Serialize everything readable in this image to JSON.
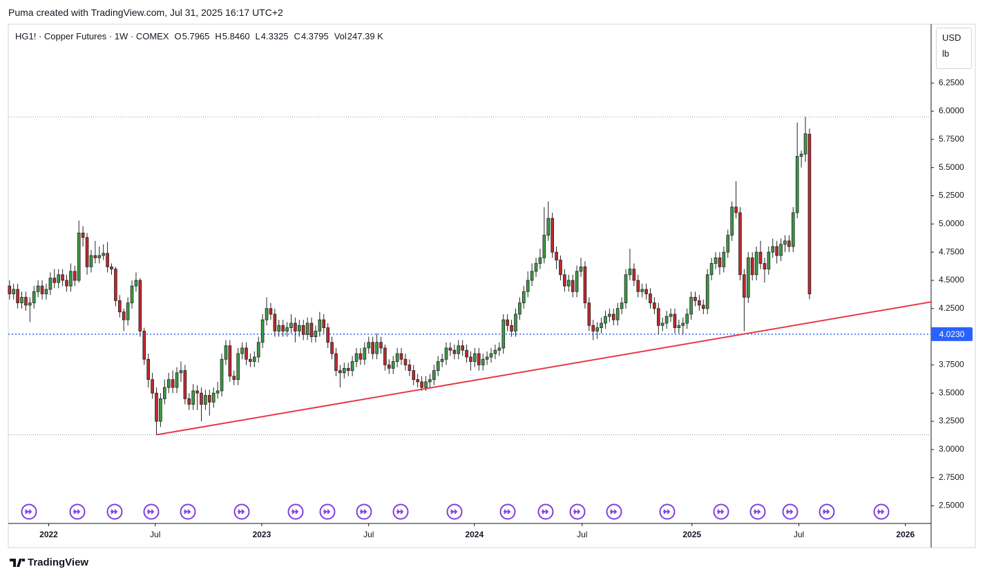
{
  "header": {
    "caption": "Puma created with TradingView.com, Jul 31, 2025 16:17 UTC+2"
  },
  "chart_data": {
    "type": "candlestick",
    "title": "HG1! · Copper Futures · 1W · COMEX",
    "legend_values": [
      {
        "label": "O",
        "text": "5.7965"
      },
      {
        "label": "H",
        "text": "5.8460"
      },
      {
        "label": "L",
        "text": "4.3325"
      },
      {
        "label": "C",
        "text": "4.3795"
      },
      {
        "label": "Vol",
        "text": "247.39 K"
      }
    ],
    "currency": "USD",
    "unit": "lb",
    "up_color": "#3d9a46",
    "down_color": "#c0282e",
    "xlim": [
      -0.3,
      225.8
    ],
    "ylim": [
      2.344,
      6.772
    ],
    "yticks": [
      {
        "value": 2.5,
        "label": "2.5000"
      },
      {
        "value": 2.75,
        "label": "2.7500"
      },
      {
        "value": 3,
        "label": "3.0000"
      },
      {
        "value": 3.25,
        "label": "3.2500"
      },
      {
        "value": 3.5,
        "label": "3.5000"
      },
      {
        "value": 3.75,
        "label": "3.7500"
      },
      {
        "value": 4,
        "label": "4.0000"
      },
      {
        "value": 4.25,
        "label": "4.2500"
      },
      {
        "value": 4.5,
        "label": "4.5000"
      },
      {
        "value": 4.75,
        "label": "4.7500"
      },
      {
        "value": 5,
        "label": "5.0000"
      },
      {
        "value": 5.25,
        "label": "5.2500"
      },
      {
        "value": 5.5,
        "label": "5.5000"
      },
      {
        "value": 5.75,
        "label": "5.7500"
      },
      {
        "value": 6,
        "label": "6.0000"
      },
      {
        "value": 6.25,
        "label": "6.2500"
      }
    ],
    "xticks": [
      {
        "value": 9.6,
        "label": "2022"
      },
      {
        "value": 35.7,
        "label": "Jul"
      },
      {
        "value": 61.8,
        "label": "2023"
      },
      {
        "value": 88,
        "label": "Jul"
      },
      {
        "value": 113.9,
        "label": "2024"
      },
      {
        "value": 140.3,
        "label": "Jul"
      },
      {
        "value": 167.2,
        "label": "2025"
      },
      {
        "value": 193.4,
        "label": "Jul"
      },
      {
        "value": 219.5,
        "label": "2026"
      }
    ],
    "range_lines": [
      5.95,
      3.13
    ],
    "hline": {
      "value": 4.023,
      "label": "4.0230",
      "color": "#2962ff"
    },
    "trendline": {
      "color": "#e53945",
      "start": [
        36,
        3.13
      ],
      "end": [
        226,
        4.31
      ]
    },
    "candles": [
      [
        4.45,
        4.5,
        4.33,
        4.38
      ],
      [
        4.38,
        4.47,
        4.33,
        4.42
      ],
      [
        4.42,
        4.47,
        4.25,
        4.3
      ],
      [
        4.3,
        4.4,
        4.25,
        4.35
      ],
      [
        4.35,
        4.4,
        4.23,
        4.28
      ],
      [
        4.28,
        4.35,
        4.13,
        4.3
      ],
      [
        4.3,
        4.45,
        4.25,
        4.4
      ],
      [
        4.4,
        4.5,
        4.35,
        4.45
      ],
      [
        4.45,
        4.5,
        4.33,
        4.38
      ],
      [
        4.38,
        4.47,
        4.33,
        4.42
      ],
      [
        4.42,
        4.57,
        4.37,
        4.52
      ],
      [
        4.52,
        4.6,
        4.43,
        4.48
      ],
      [
        4.48,
        4.6,
        4.43,
        4.55
      ],
      [
        4.55,
        4.6,
        4.45,
        4.5
      ],
      [
        4.5,
        4.55,
        4.4,
        4.45
      ],
      [
        4.45,
        4.65,
        4.4,
        4.58
      ],
      [
        4.58,
        4.63,
        4.45,
        4.5
      ],
      [
        4.5,
        5.03,
        4.48,
        4.92
      ],
      [
        4.92,
        4.98,
        4.8,
        4.88
      ],
      [
        4.88,
        4.92,
        4.55,
        4.62
      ],
      [
        4.62,
        4.77,
        4.57,
        4.72
      ],
      [
        4.72,
        4.85,
        4.65,
        4.7
      ],
      [
        4.7,
        4.8,
        4.65,
        4.72
      ],
      [
        4.72,
        4.82,
        4.68,
        4.74
      ],
      [
        4.74,
        4.84,
        4.57,
        4.62
      ],
      [
        4.62,
        4.65,
        4.55,
        4.6
      ],
      [
        4.6,
        4.62,
        4.27,
        4.32
      ],
      [
        4.32,
        4.37,
        4.17,
        4.22
      ],
      [
        4.22,
        4.25,
        4.05,
        4.15
      ],
      [
        4.15,
        4.35,
        4.1,
        4.3
      ],
      [
        4.3,
        4.5,
        4.25,
        4.45
      ],
      [
        4.45,
        4.57,
        4.4,
        4.5
      ],
      [
        4.5,
        4.52,
        4.0,
        4.05
      ],
      [
        4.05,
        4.08,
        3.75,
        3.8
      ],
      [
        3.8,
        3.85,
        3.55,
        3.62
      ],
      [
        3.62,
        3.68,
        3.45,
        3.5
      ],
      [
        3.5,
        3.55,
        3.13,
        3.25
      ],
      [
        3.25,
        3.5,
        3.2,
        3.45
      ],
      [
        3.45,
        3.62,
        3.4,
        3.55
      ],
      [
        3.55,
        3.68,
        3.5,
        3.62
      ],
      [
        3.62,
        3.7,
        3.5,
        3.55
      ],
      [
        3.55,
        3.73,
        3.5,
        3.68
      ],
      [
        3.68,
        3.78,
        3.6,
        3.7
      ],
      [
        3.7,
        3.75,
        3.4,
        3.45
      ],
      [
        3.45,
        3.5,
        3.35,
        3.4
      ],
      [
        3.4,
        3.58,
        3.35,
        3.52
      ],
      [
        3.52,
        3.57,
        3.35,
        3.5
      ],
      [
        3.5,
        3.55,
        3.25,
        3.4
      ],
      [
        3.4,
        3.53,
        3.35,
        3.48
      ],
      [
        3.48,
        3.53,
        3.3,
        3.42
      ],
      [
        3.42,
        3.55,
        3.37,
        3.5
      ],
      [
        3.5,
        3.6,
        3.45,
        3.52
      ],
      [
        3.52,
        3.85,
        3.47,
        3.8
      ],
      [
        3.8,
        3.97,
        3.75,
        3.92
      ],
      [
        3.92,
        3.97,
        3.6,
        3.65
      ],
      [
        3.65,
        3.7,
        3.57,
        3.62
      ],
      [
        3.62,
        3.9,
        3.57,
        3.85
      ],
      [
        3.85,
        3.95,
        3.8,
        3.9
      ],
      [
        3.9,
        3.95,
        3.75,
        3.8
      ],
      [
        3.8,
        3.85,
        3.73,
        3.78
      ],
      [
        3.78,
        3.87,
        3.73,
        3.82
      ],
      [
        3.82,
        4.0,
        3.77,
        3.95
      ],
      [
        3.95,
        4.2,
        3.9,
        4.15
      ],
      [
        4.15,
        4.35,
        4.1,
        4.25
      ],
      [
        4.25,
        4.3,
        4.15,
        4.2
      ],
      [
        4.2,
        4.25,
        4.0,
        4.05
      ],
      [
        4.05,
        4.15,
        4.0,
        4.1
      ],
      [
        4.1,
        4.15,
        4.0,
        4.05
      ],
      [
        4.05,
        4.13,
        4.0,
        4.08
      ],
      [
        4.08,
        4.2,
        4.03,
        4.12
      ],
      [
        4.12,
        4.17,
        3.95,
        4.05
      ],
      [
        4.05,
        4.15,
        4.0,
        4.1
      ],
      [
        4.1,
        4.15,
        3.97,
        4.02
      ],
      [
        4.02,
        4.17,
        3.97,
        4.12
      ],
      [
        4.12,
        4.17,
        3.95,
        4.0
      ],
      [
        4.0,
        4.1,
        3.95,
        4.05
      ],
      [
        4.05,
        4.22,
        4.0,
        4.15
      ],
      [
        4.15,
        4.2,
        4.03,
        4.08
      ],
      [
        4.08,
        4.12,
        3.9,
        3.95
      ],
      [
        3.95,
        4.0,
        3.8,
        3.85
      ],
      [
        3.85,
        3.9,
        3.65,
        3.7
      ],
      [
        3.7,
        3.75,
        3.55,
        3.68
      ],
      [
        3.68,
        3.77,
        3.63,
        3.72
      ],
      [
        3.72,
        3.77,
        3.65,
        3.7
      ],
      [
        3.7,
        3.83,
        3.65,
        3.78
      ],
      [
        3.78,
        3.9,
        3.73,
        3.85
      ],
      [
        3.85,
        3.9,
        3.75,
        3.8
      ],
      [
        3.8,
        3.95,
        3.75,
        3.9
      ],
      [
        3.9,
        4.0,
        3.85,
        3.95
      ],
      [
        3.95,
        4.0,
        3.8,
        3.85
      ],
      [
        3.85,
        4.03,
        3.8,
        3.95
      ],
      [
        3.95,
        4.0,
        3.85,
        3.9
      ],
      [
        3.9,
        3.93,
        3.7,
        3.75
      ],
      [
        3.75,
        3.8,
        3.67,
        3.72
      ],
      [
        3.72,
        3.83,
        3.67,
        3.78
      ],
      [
        3.78,
        3.9,
        3.73,
        3.85
      ],
      [
        3.85,
        3.9,
        3.75,
        3.8
      ],
      [
        3.8,
        3.85,
        3.7,
        3.75
      ],
      [
        3.75,
        3.8,
        3.65,
        3.7
      ],
      [
        3.7,
        3.75,
        3.57,
        3.62
      ],
      [
        3.62,
        3.67,
        3.55,
        3.6
      ],
      [
        3.6,
        3.65,
        3.52,
        3.55
      ],
      [
        3.55,
        3.65,
        3.52,
        3.6
      ],
      [
        3.6,
        3.67,
        3.55,
        3.62
      ],
      [
        3.62,
        3.75,
        3.57,
        3.7
      ],
      [
        3.7,
        3.83,
        3.65,
        3.78
      ],
      [
        3.78,
        3.85,
        3.73,
        3.8
      ],
      [
        3.8,
        3.95,
        3.75,
        3.9
      ],
      [
        3.9,
        3.95,
        3.83,
        3.88
      ],
      [
        3.88,
        3.93,
        3.8,
        3.85
      ],
      [
        3.85,
        3.97,
        3.8,
        3.92
      ],
      [
        3.92,
        3.97,
        3.83,
        3.88
      ],
      [
        3.88,
        3.93,
        3.77,
        3.82
      ],
      [
        3.82,
        3.87,
        3.7,
        3.78
      ],
      [
        3.78,
        3.9,
        3.73,
        3.85
      ],
      [
        3.85,
        3.9,
        3.7,
        3.75
      ],
      [
        3.75,
        3.85,
        3.7,
        3.8
      ],
      [
        3.8,
        3.87,
        3.75,
        3.82
      ],
      [
        3.82,
        3.9,
        3.77,
        3.85
      ],
      [
        3.85,
        3.93,
        3.8,
        3.88
      ],
      [
        3.88,
        3.95,
        3.83,
        3.9
      ],
      [
        3.9,
        4.2,
        3.85,
        4.15
      ],
      [
        4.15,
        4.2,
        4.05,
        4.1
      ],
      [
        4.1,
        4.15,
        4.0,
        4.05
      ],
      [
        4.05,
        4.25,
        4.0,
        4.2
      ],
      [
        4.2,
        4.35,
        4.15,
        4.3
      ],
      [
        4.3,
        4.45,
        4.25,
        4.4
      ],
      [
        4.4,
        4.58,
        4.35,
        4.5
      ],
      [
        4.5,
        4.65,
        4.45,
        4.58
      ],
      [
        4.58,
        4.7,
        4.53,
        4.65
      ],
      [
        4.65,
        4.78,
        4.6,
        4.7
      ],
      [
        4.7,
        5.15,
        4.65,
        4.9
      ],
      [
        4.9,
        5.2,
        4.85,
        5.05
      ],
      [
        5.05,
        5.1,
        4.7,
        4.75
      ],
      [
        4.75,
        4.8,
        4.6,
        4.68
      ],
      [
        4.68,
        4.72,
        4.5,
        4.55
      ],
      [
        4.55,
        4.6,
        4.4,
        4.45
      ],
      [
        4.45,
        4.55,
        4.4,
        4.5
      ],
      [
        4.5,
        4.55,
        4.35,
        4.4
      ],
      [
        4.4,
        4.63,
        4.35,
        4.58
      ],
      [
        4.58,
        4.7,
        4.53,
        4.62
      ],
      [
        4.62,
        4.67,
        4.25,
        4.3
      ],
      [
        4.3,
        4.35,
        4.05,
        4.1
      ],
      [
        4.1,
        4.15,
        3.97,
        4.05
      ],
      [
        4.05,
        4.13,
        3.98,
        4.08
      ],
      [
        4.08,
        4.17,
        4.03,
        4.12
      ],
      [
        4.12,
        4.23,
        4.07,
        4.18
      ],
      [
        4.18,
        4.25,
        4.13,
        4.2
      ],
      [
        4.2,
        4.25,
        4.1,
        4.15
      ],
      [
        4.15,
        4.3,
        4.1,
        4.25
      ],
      [
        4.25,
        4.35,
        4.2,
        4.3
      ],
      [
        4.3,
        4.6,
        4.25,
        4.55
      ],
      [
        4.55,
        4.78,
        4.5,
        4.6
      ],
      [
        4.6,
        4.65,
        4.45,
        4.5
      ],
      [
        4.5,
        4.55,
        4.35,
        4.4
      ],
      [
        4.4,
        4.47,
        4.35,
        4.42
      ],
      [
        4.42,
        4.47,
        4.33,
        4.38
      ],
      [
        4.38,
        4.43,
        4.25,
        4.3
      ],
      [
        4.3,
        4.35,
        4.2,
        4.25
      ],
      [
        4.25,
        4.3,
        4.02,
        4.1
      ],
      [
        4.1,
        4.17,
        4.05,
        4.12
      ],
      [
        4.12,
        4.23,
        4.07,
        4.18
      ],
      [
        4.18,
        4.25,
        4.13,
        4.2
      ],
      [
        4.2,
        4.25,
        4.03,
        4.08
      ],
      [
        4.08,
        4.15,
        4.03,
        4.1
      ],
      [
        4.1,
        4.17,
        4.02,
        4.12
      ],
      [
        4.12,
        4.25,
        4.07,
        4.2
      ],
      [
        4.2,
        4.4,
        4.15,
        4.35
      ],
      [
        4.35,
        4.4,
        4.27,
        4.32
      ],
      [
        4.32,
        4.37,
        4.23,
        4.28
      ],
      [
        4.28,
        4.33,
        4.2,
        4.25
      ],
      [
        4.25,
        4.6,
        4.2,
        4.55
      ],
      [
        4.55,
        4.7,
        4.5,
        4.65
      ],
      [
        4.65,
        4.75,
        4.6,
        4.7
      ],
      [
        4.7,
        4.75,
        4.55,
        4.62
      ],
      [
        4.62,
        4.8,
        4.57,
        4.75
      ],
      [
        4.75,
        4.95,
        4.7,
        4.9
      ],
      [
        4.9,
        5.2,
        4.85,
        5.15
      ],
      [
        5.15,
        5.38,
        5.05,
        5.1
      ],
      [
        5.1,
        5.15,
        4.5,
        4.55
      ],
      [
        4.55,
        4.6,
        4.05,
        4.35
      ],
      [
        4.35,
        4.75,
        4.3,
        4.7
      ],
      [
        4.7,
        4.75,
        4.5,
        4.55
      ],
      [
        4.55,
        4.8,
        4.5,
        4.75
      ],
      [
        4.75,
        4.85,
        4.6,
        4.65
      ],
      [
        4.65,
        4.7,
        4.48,
        4.6
      ],
      [
        4.6,
        4.8,
        4.55,
        4.75
      ],
      [
        4.75,
        4.87,
        4.7,
        4.8
      ],
      [
        4.8,
        4.85,
        4.65,
        4.72
      ],
      [
        4.72,
        4.87,
        4.67,
        4.82
      ],
      [
        4.82,
        4.9,
        4.75,
        4.85
      ],
      [
        4.85,
        4.9,
        4.75,
        4.8
      ],
      [
        4.8,
        5.15,
        4.75,
        5.1
      ],
      [
        5.1,
        5.9,
        5.05,
        5.6
      ],
      [
        5.6,
        5.65,
        5.5,
        5.62
      ],
      [
        5.62,
        5.95,
        5.55,
        5.8
      ],
      [
        5.7965,
        5.846,
        4.3325,
        4.3795
      ]
    ]
  },
  "footer": {
    "brand": "TradingView"
  }
}
